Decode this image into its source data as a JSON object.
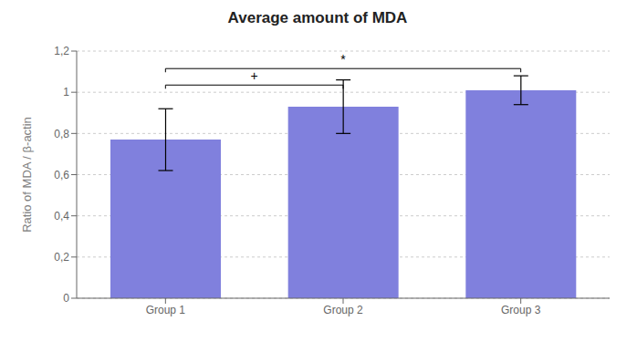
{
  "chart_data": {
    "type": "bar",
    "title": "Average amount of MDA",
    "ylabel": "Ratio of MDA / β-actin",
    "categories": [
      "Group 1",
      "Group 2",
      "Group 3"
    ],
    "values": [
      0.77,
      0.93,
      1.01
    ],
    "errors": [
      0.15,
      0.13,
      0.07
    ],
    "color": "#8080dd",
    "ylim": [
      0,
      1.2
    ],
    "yticks": [
      0,
      {
        "value": 0.2,
        "label": "0,2"
      },
      {
        "value": 0.4,
        "label": "0,4"
      },
      {
        "value": 0.6,
        "label": "0,6"
      },
      {
        "value": 0.8,
        "label": "0,8"
      },
      1,
      {
        "value": 1.2,
        "label": "1,2"
      }
    ],
    "grid": true,
    "annotations": [
      {
        "x1": "Group 1",
        "x2": "Group 2",
        "y": 1.035,
        "label": "+"
      },
      {
        "x1": "Group 1",
        "x2": "Group 3",
        "y": 1.115,
        "label": "*"
      }
    ]
  }
}
